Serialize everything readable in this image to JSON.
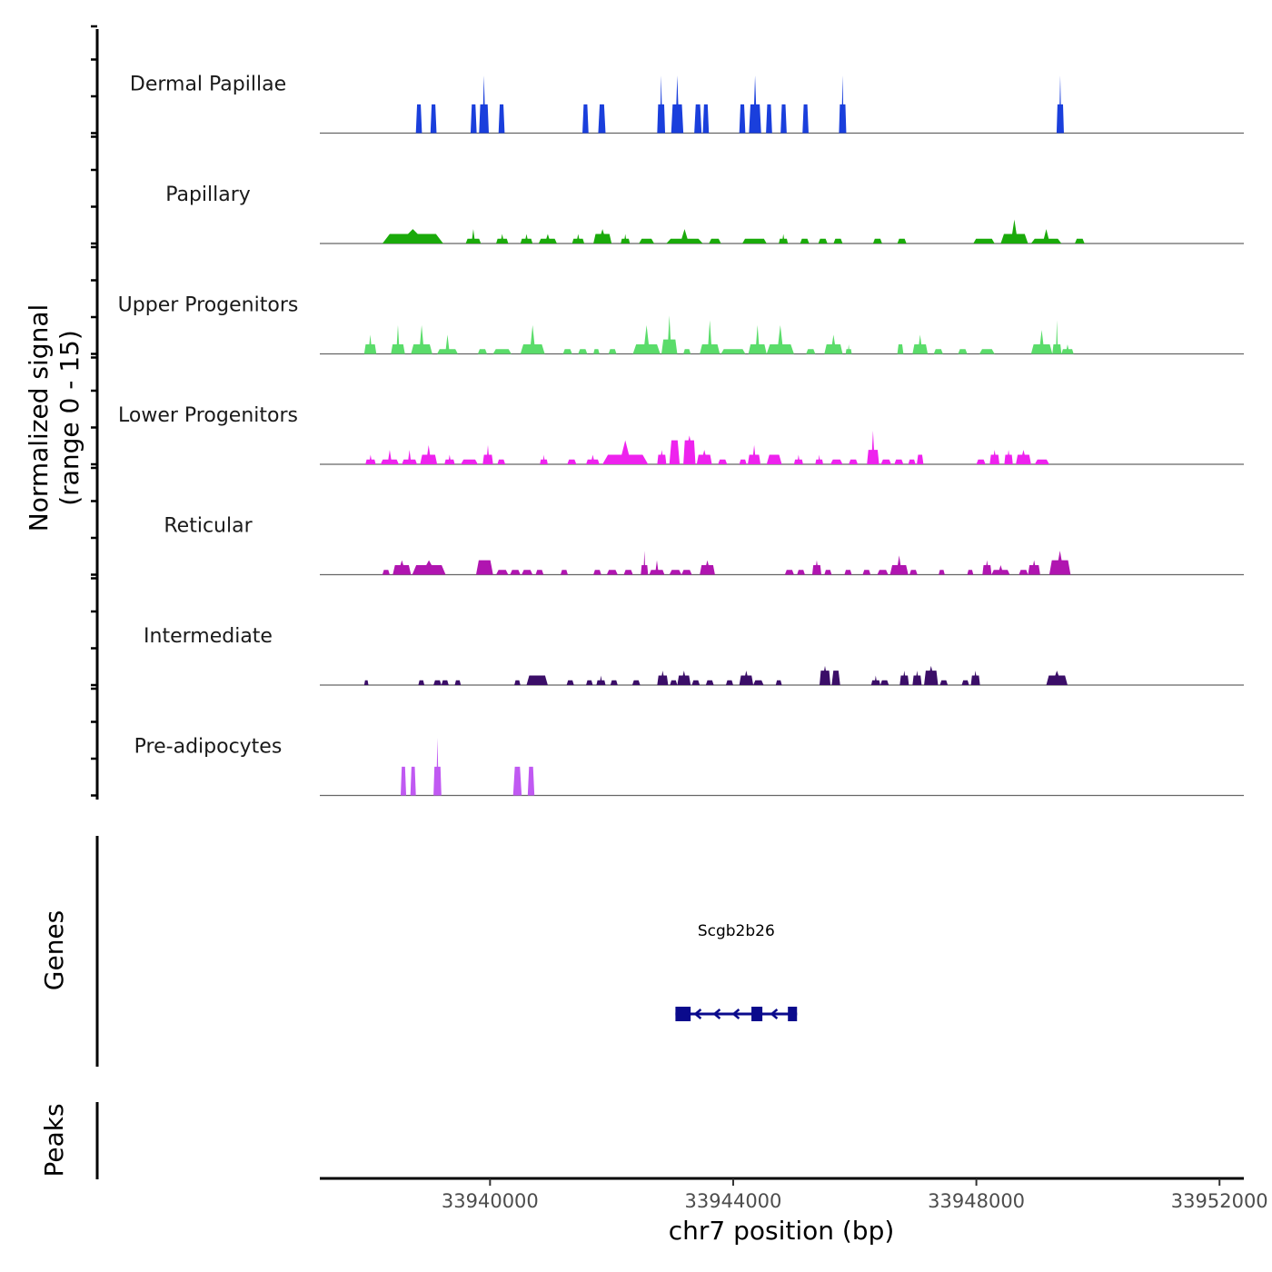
{
  "chart_data": {
    "type": "area",
    "title": "",
    "ylabel": "Normalized signal\n(range 0 - 15)",
    "ylabel_lines": [
      "Normalized signal",
      "(range 0 - 15)"
    ],
    "xlabel": "chr7 position (bp)",
    "xlim": [
      33937200,
      33952400
    ],
    "ylim": [
      0,
      15
    ],
    "x_ticks": [
      33940000,
      33944000,
      33948000,
      33952000
    ],
    "x_tick_labels": [
      "33940000",
      "33944000",
      "33948000",
      "33952000"
    ],
    "grid": false,
    "tracks": [
      {
        "name": "Dermal Papillae",
        "color": "#1a3fdc",
        "peaks": [
          [
            33938780,
            33938880,
            6,
            6
          ],
          [
            33939020,
            33939120,
            6,
            6
          ],
          [
            33939680,
            33939780,
            6,
            6
          ],
          [
            33939820,
            33939980,
            6,
            12
          ],
          [
            33940140,
            33940240,
            6,
            6
          ],
          [
            33941520,
            33941620,
            6,
            6
          ],
          [
            33941780,
            33941900,
            6,
            6
          ],
          [
            33942750,
            33942880,
            6,
            12
          ],
          [
            33942980,
            33943180,
            6,
            12
          ],
          [
            33943360,
            33943480,
            6,
            6
          ],
          [
            33943500,
            33943600,
            6,
            6
          ],
          [
            33944100,
            33944200,
            6,
            6
          ],
          [
            33944260,
            33944460,
            6,
            12
          ],
          [
            33944540,
            33944640,
            6,
            6
          ],
          [
            33944780,
            33944880,
            6,
            6
          ],
          [
            33945140,
            33945240,
            6,
            6
          ],
          [
            33945740,
            33945860,
            6,
            12
          ],
          [
            33949320,
            33949440,
            6,
            12
          ]
        ]
      },
      {
        "name": "Papillary",
        "color": "#1aaa0a",
        "peaks": [
          [
            33938230,
            33939230,
            2,
            3
          ],
          [
            33939600,
            33939850,
            1,
            3
          ],
          [
            33940100,
            33940300,
            1,
            2
          ],
          [
            33940500,
            33940700,
            1,
            2
          ],
          [
            33940800,
            33941100,
            1,
            2
          ],
          [
            33941350,
            33941550,
            1,
            2
          ],
          [
            33941700,
            33942000,
            2,
            3
          ],
          [
            33942150,
            33942300,
            1,
            2
          ],
          [
            33942450,
            33942700,
            1,
            1
          ],
          [
            33942900,
            33943500,
            1,
            3
          ],
          [
            33943600,
            33943800,
            1,
            1
          ],
          [
            33944150,
            33944550,
            1,
            1
          ],
          [
            33944750,
            33944900,
            1,
            2
          ],
          [
            33945100,
            33945250,
            1,
            1
          ],
          [
            33945400,
            33945550,
            1,
            1
          ],
          [
            33945650,
            33945800,
            1,
            1
          ],
          [
            33946300,
            33946450,
            1,
            1
          ],
          [
            33946700,
            33946850,
            1,
            1
          ],
          [
            33947950,
            33948300,
            1,
            1
          ],
          [
            33948400,
            33948850,
            2,
            5
          ],
          [
            33948900,
            33949400,
            1,
            3
          ],
          [
            33949620,
            33949780,
            1,
            1
          ]
        ]
      },
      {
        "name": "Upper Progenitors",
        "color": "#5adc6a",
        "peaks": [
          [
            33937930,
            33938130,
            2,
            4
          ],
          [
            33938370,
            33938600,
            2,
            6
          ],
          [
            33938700,
            33939050,
            2,
            6
          ],
          [
            33939130,
            33939470,
            1,
            4
          ],
          [
            33939800,
            33939950,
            1,
            1
          ],
          [
            33940050,
            33940350,
            1,
            1
          ],
          [
            33940500,
            33940900,
            2,
            6
          ],
          [
            33941200,
            33941350,
            1,
            1
          ],
          [
            33941450,
            33941600,
            1,
            1
          ],
          [
            33941700,
            33941800,
            1,
            1
          ],
          [
            33941950,
            33942080,
            1,
            1
          ],
          [
            33942350,
            33942800,
            2,
            6
          ],
          [
            33942820,
            33943080,
            3,
            8
          ],
          [
            33943180,
            33943300,
            1,
            1
          ],
          [
            33943450,
            33943780,
            2,
            7
          ],
          [
            33943800,
            33944200,
            1,
            1
          ],
          [
            33944250,
            33944550,
            2,
            6
          ],
          [
            33944550,
            33945000,
            2,
            6
          ],
          [
            33945200,
            33945350,
            1,
            1
          ],
          [
            33945500,
            33945800,
            2,
            4
          ],
          [
            33945850,
            33945950,
            1,
            2
          ],
          [
            33946700,
            33946800,
            2,
            2
          ],
          [
            33946950,
            33947200,
            2,
            4
          ],
          [
            33947300,
            33947450,
            1,
            1
          ],
          [
            33947700,
            33947850,
            1,
            1
          ],
          [
            33948050,
            33948300,
            1,
            1
          ],
          [
            33948900,
            33949250,
            2,
            5
          ],
          [
            33949250,
            33949400,
            2,
            7
          ],
          [
            33949400,
            33949600,
            1,
            2
          ]
        ]
      },
      {
        "name": "Lower Progenitors",
        "color": "#ee22ee",
        "peaks": [
          [
            33937950,
            33938120,
            1,
            2
          ],
          [
            33938200,
            33938500,
            1,
            3
          ],
          [
            33938550,
            33938800,
            1,
            3
          ],
          [
            33938850,
            33939130,
            2,
            4
          ],
          [
            33939250,
            33939420,
            1,
            2
          ],
          [
            33939520,
            33939800,
            1,
            1
          ],
          [
            33939880,
            33940050,
            2,
            4
          ],
          [
            33940120,
            33940250,
            1,
            1
          ],
          [
            33940820,
            33940950,
            1,
            2
          ],
          [
            33941270,
            33941420,
            1,
            1
          ],
          [
            33941580,
            33941800,
            1,
            2
          ],
          [
            33941850,
            33942600,
            2,
            5
          ],
          [
            33942750,
            33942900,
            2,
            3
          ],
          [
            33942950,
            33943120,
            5,
            5
          ],
          [
            33943180,
            33943380,
            5,
            6
          ],
          [
            33943400,
            33943650,
            2,
            3
          ],
          [
            33943750,
            33943900,
            1,
            1
          ],
          [
            33944100,
            33944220,
            1,
            1
          ],
          [
            33944240,
            33944450,
            2,
            4
          ],
          [
            33944550,
            33944800,
            2,
            2
          ],
          [
            33945000,
            33945150,
            1,
            2
          ],
          [
            33945350,
            33945480,
            1,
            2
          ],
          [
            33945600,
            33945800,
            1,
            1
          ],
          [
            33945900,
            33946050,
            1,
            1
          ],
          [
            33946200,
            33946400,
            3,
            7
          ],
          [
            33946430,
            33946600,
            1,
            1
          ],
          [
            33946650,
            33946800,
            1,
            1
          ],
          [
            33946880,
            33947000,
            1,
            1
          ],
          [
            33947020,
            33947130,
            2,
            2
          ],
          [
            33948000,
            33948150,
            1,
            1
          ],
          [
            33948220,
            33948380,
            2,
            3
          ],
          [
            33948460,
            33948600,
            2,
            3
          ],
          [
            33948650,
            33948900,
            2,
            3
          ],
          [
            33948960,
            33949200,
            1,
            1
          ]
        ]
      },
      {
        "name": "Reticular",
        "color": "#b015b0",
        "peaks": [
          [
            33938230,
            33938350,
            1,
            1
          ],
          [
            33938400,
            33938700,
            2,
            3
          ],
          [
            33938720,
            33939270,
            2,
            3
          ],
          [
            33939770,
            33940050,
            3,
            3
          ],
          [
            33940100,
            33940300,
            1,
            1
          ],
          [
            33940330,
            33940500,
            1,
            1
          ],
          [
            33940520,
            33940700,
            1,
            1
          ],
          [
            33940750,
            33940880,
            1,
            1
          ],
          [
            33941160,
            33941280,
            1,
            1
          ],
          [
            33941700,
            33941830,
            1,
            1
          ],
          [
            33941920,
            33942100,
            1,
            1
          ],
          [
            33942200,
            33942350,
            1,
            1
          ],
          [
            33942480,
            33942600,
            2,
            5
          ],
          [
            33942620,
            33942870,
            1,
            3
          ],
          [
            33942950,
            33943150,
            1,
            1
          ],
          [
            33943150,
            33943320,
            1,
            1
          ],
          [
            33943450,
            33943700,
            2,
            3
          ],
          [
            33944850,
            33945000,
            1,
            1
          ],
          [
            33945050,
            33945180,
            1,
            1
          ],
          [
            33945300,
            33945450,
            2,
            3
          ],
          [
            33945500,
            33945620,
            1,
            1
          ],
          [
            33945830,
            33945950,
            1,
            1
          ],
          [
            33946130,
            33946260,
            1,
            1
          ],
          [
            33946370,
            33946550,
            1,
            1
          ],
          [
            33946580,
            33946880,
            2,
            4
          ],
          [
            33946900,
            33947030,
            1,
            1
          ],
          [
            33947380,
            33947480,
            1,
            1
          ],
          [
            33947850,
            33947950,
            1,
            1
          ],
          [
            33948100,
            33948250,
            2,
            3
          ],
          [
            33948250,
            33948550,
            1,
            2
          ],
          [
            33948700,
            33948850,
            1,
            1
          ],
          [
            33948850,
            33949050,
            2,
            3
          ],
          [
            33949200,
            33949550,
            3,
            5
          ]
        ]
      },
      {
        "name": "Intermediate",
        "color": "#3b0e68",
        "peaks": [
          [
            33937930,
            33938000,
            1,
            1
          ],
          [
            33938820,
            33938920,
            1,
            1
          ],
          [
            33939070,
            33939200,
            1,
            1
          ],
          [
            33939200,
            33939320,
            1,
            1
          ],
          [
            33939420,
            33939520,
            1,
            1
          ],
          [
            33940400,
            33940500,
            1,
            1
          ],
          [
            33940600,
            33940950,
            2,
            2
          ],
          [
            33941260,
            33941380,
            1,
            1
          ],
          [
            33941580,
            33941690,
            1,
            1
          ],
          [
            33941750,
            33941900,
            1,
            2
          ],
          [
            33941980,
            33942100,
            1,
            1
          ],
          [
            33942340,
            33942470,
            1,
            1
          ],
          [
            33942750,
            33942930,
            2,
            3
          ],
          [
            33942960,
            33943080,
            1,
            1
          ],
          [
            33943080,
            33943300,
            2,
            3
          ],
          [
            33943320,
            33943450,
            1,
            1
          ],
          [
            33943550,
            33943680,
            1,
            1
          ],
          [
            33943880,
            33944000,
            1,
            1
          ],
          [
            33944100,
            33944330,
            2,
            3
          ],
          [
            33944330,
            33944500,
            1,
            1
          ],
          [
            33944700,
            33944800,
            1,
            1
          ],
          [
            33945420,
            33945600,
            3,
            4
          ],
          [
            33945620,
            33945760,
            3,
            3
          ],
          [
            33946270,
            33946420,
            1,
            2
          ],
          [
            33946420,
            33946560,
            1,
            1
          ],
          [
            33946740,
            33946890,
            2,
            3
          ],
          [
            33946950,
            33947100,
            2,
            3
          ],
          [
            33947140,
            33947370,
            3,
            4
          ],
          [
            33947400,
            33947530,
            1,
            1
          ],
          [
            33947760,
            33947880,
            1,
            1
          ],
          [
            33947910,
            33948060,
            2,
            3
          ],
          [
            33949150,
            33949500,
            2,
            3
          ]
        ]
      },
      {
        "name": "Pre-adipocytes",
        "color": "#c059f2",
        "peaks": [
          [
            33938530,
            33938620,
            6,
            6
          ],
          [
            33938690,
            33938780,
            6,
            6
          ],
          [
            33939070,
            33939200,
            6,
            12
          ],
          [
            33940380,
            33940520,
            6,
            6
          ],
          [
            33940620,
            33940730,
            6,
            6
          ]
        ]
      }
    ],
    "genes_track": {
      "label": "Genes",
      "genes": [
        {
          "name": "Scgb2b26",
          "strand": "-",
          "start": 33943050,
          "end": 33945050,
          "exons": [
            [
              33943050,
              33943300
            ],
            [
              33944300,
              33944480
            ],
            [
              33944900,
              33945050
            ]
          ],
          "color": "#0a0a8c"
        }
      ]
    },
    "peaks_track": {
      "label": "Peaks",
      "peaks": []
    },
    "axis_color": "#000000",
    "baseline_color": "#666666"
  }
}
